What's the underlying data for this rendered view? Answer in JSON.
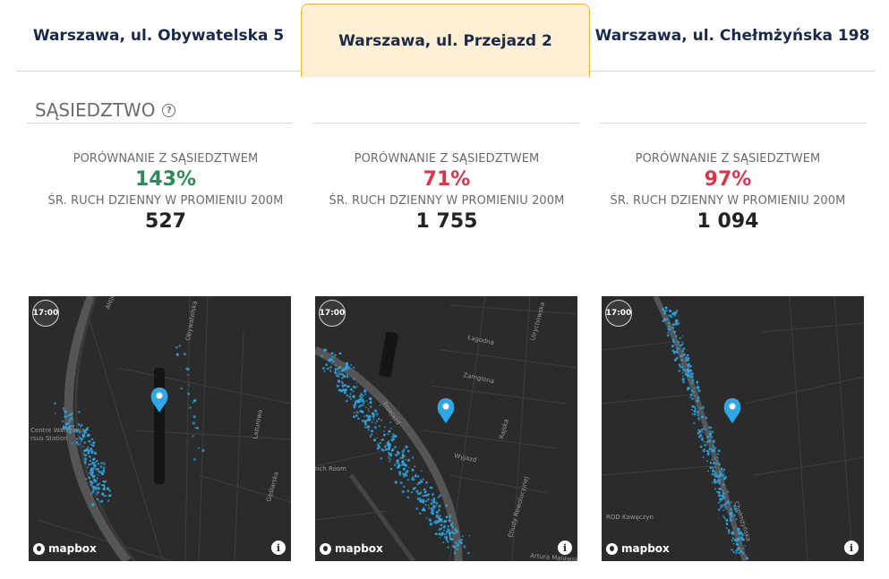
{
  "tabs": [
    {
      "label": "Warszawa, ul. Obywatelska 5",
      "active": false
    },
    {
      "label": "Warszawa, ul. Przejazd 2",
      "active": true
    },
    {
      "label": "Warszawa, ul. Chełmżyńska 198",
      "active": false
    }
  ],
  "section": {
    "title": "SĄSIEDZTWO",
    "help_icon": "question-circle-icon"
  },
  "colors": {
    "accent_tab_bg": "#fcefd4",
    "accent_tab_border": "#f0b43a",
    "positive": "#2e8a57",
    "negative": "#d9364a",
    "dots": "#2ea8e6"
  },
  "columns": [
    {
      "compare_label": "PORÓWNANIE Z SĄSIEDZTWEM",
      "compare_value": "143%",
      "compare_status": "positive",
      "traffic_label": "ŚR. RUCH DZIENNY W PROMIENIU 200M",
      "traffic_value": "527",
      "map": {
        "time": "17:00",
        "streets": [
          "Aleje",
          "Obywatelska",
          "Lazurowa",
          "Gęślarska",
          "Centre Warszawa",
          "rsus Station"
        ],
        "attribution": "mapbox"
      }
    },
    {
      "compare_label": "PORÓWNANIE Z SĄSIEDZTWEM",
      "compare_value": "71%",
      "compare_status": "negative",
      "traffic_label": "ŚR. RUCH DZIENNY W PROMIENIU 200M",
      "traffic_value": "1 755",
      "map": {
        "time": "17:00",
        "streets": [
          "Łagodna",
          "Ulrychowska",
          "Zamglona",
          "Rajska",
          "Wyjazd",
          "Przejazd",
          "nch Room",
          "Etiudy Rewolucyjnej",
          "Artura Malawskiego"
        ],
        "attribution": "mapbox"
      }
    },
    {
      "compare_label": "PORÓWNANIE Z SĄSIEDZTWEM",
      "compare_value": "97%",
      "compare_status": "negative",
      "traffic_label": "ŚR. RUCH DZIENNY W PROMIENIU 200M",
      "traffic_value": "1 094",
      "map": {
        "time": "17:00",
        "streets": [
          "ROD Kawęczyn",
          "Chełmżyńska"
        ],
        "attribution": "mapbox"
      }
    }
  ]
}
